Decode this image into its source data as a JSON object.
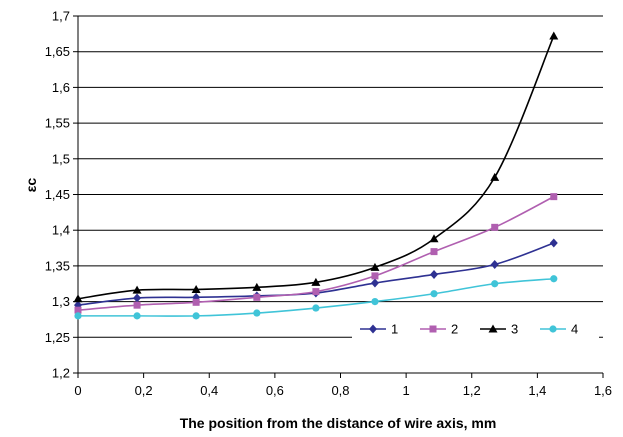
{
  "chart_data": {
    "type": "line",
    "xlabel": "The position from the distance of wire axis, mm",
    "ylabel": "εc",
    "xlim": [
      0,
      1.6
    ],
    "ylim": [
      1.2,
      1.7
    ],
    "x_ticks": [
      "0",
      "0,2",
      "0,4",
      "0,6",
      "0,8",
      "1",
      "1,2",
      "1,4",
      "1,6"
    ],
    "y_ticks": [
      "1,2",
      "1,25",
      "1,3",
      "1,35",
      "1,4",
      "1,45",
      "1,5",
      "1,55",
      "1,6",
      "1,65",
      "1,7"
    ],
    "grid": "horizontal",
    "legend_position": "bottom-right",
    "x": [
      0,
      0.18,
      0.36,
      0.545,
      0.725,
      0.905,
      1.085,
      1.27,
      1.45
    ],
    "series": [
      {
        "name": "1",
        "color": "#2e3192",
        "marker": "diamond",
        "values": [
          1.295,
          1.305,
          1.306,
          1.308,
          1.312,
          1.326,
          1.338,
          1.352,
          1.382
        ]
      },
      {
        "name": "2",
        "color": "#b05fb0",
        "marker": "square",
        "values": [
          1.288,
          1.295,
          1.299,
          1.306,
          1.314,
          1.336,
          1.37,
          1.404,
          1.447
        ]
      },
      {
        "name": "3",
        "color": "#000000",
        "marker": "triangle",
        "values": [
          1.304,
          1.316,
          1.317,
          1.32,
          1.327,
          1.348,
          1.388,
          1.474,
          1.672
        ]
      },
      {
        "name": "4",
        "color": "#40c4d8",
        "marker": "circle",
        "values": [
          1.28,
          1.28,
          1.28,
          1.284,
          1.291,
          1.3,
          1.311,
          1.325,
          1.332
        ]
      }
    ]
  }
}
